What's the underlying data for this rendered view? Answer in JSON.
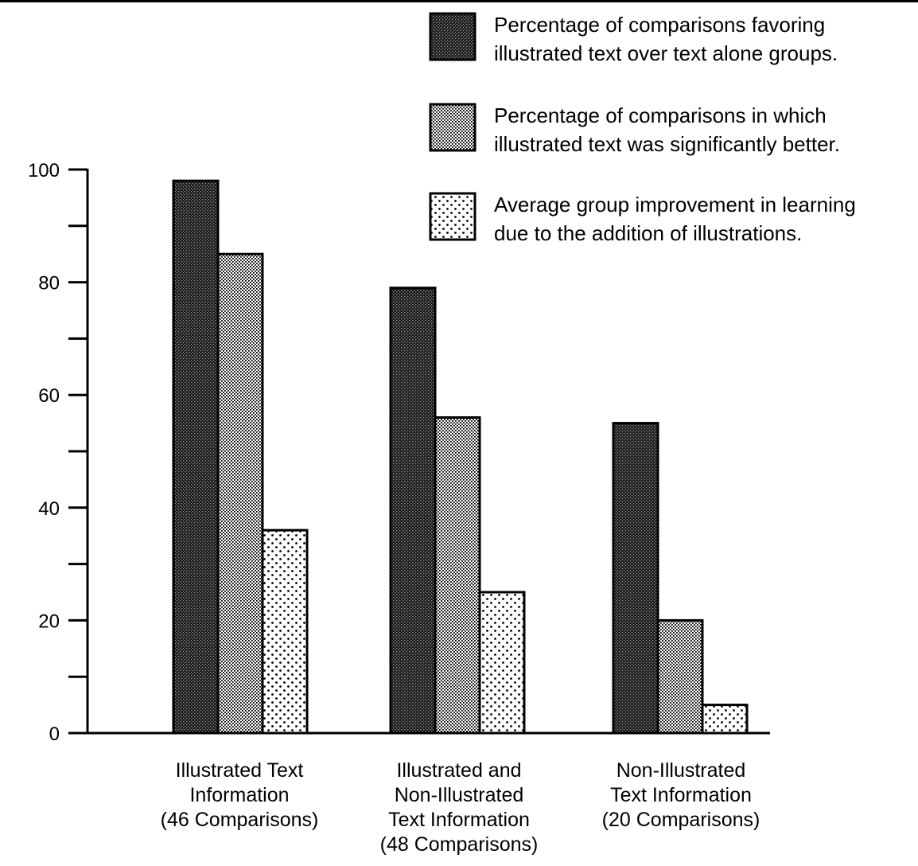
{
  "chart_data": {
    "type": "bar",
    "title": "",
    "xlabel": "",
    "ylabel": "",
    "ylim": [
      0,
      100
    ],
    "yticks": [
      0,
      20,
      40,
      60,
      80,
      100
    ],
    "yticks_minor": [
      10,
      30,
      50,
      70,
      90
    ],
    "grid": false,
    "legend_position": "top-right",
    "categories": [
      [
        "Illustrated Text",
        "Information",
        "(46 Comparisons)"
      ],
      [
        "Illustrated and",
        "Non-Illustrated",
        "Text Information",
        "(48 Comparisons)"
      ],
      [
        "Non-Illustrated",
        "Text Information",
        "(20 Comparisons)"
      ]
    ],
    "series": [
      {
        "name": [
          "Percentage of comparisons favoring",
          "illustrated text over text alone groups."
        ],
        "pattern": "dark-dots",
        "values": [
          98,
          79,
          55
        ]
      },
      {
        "name": [
          "Percentage of comparisons in which",
          "illustrated text was significantly better."
        ],
        "pattern": "medium-dots",
        "values": [
          85,
          56,
          20
        ]
      },
      {
        "name": [
          "Average group improvement in learning",
          "due to the addition of illustrations."
        ],
        "pattern": "light-dots",
        "values": [
          36,
          25,
          5
        ]
      }
    ],
    "colors": {
      "ink": "#000000",
      "paper": "#ffffff"
    }
  }
}
